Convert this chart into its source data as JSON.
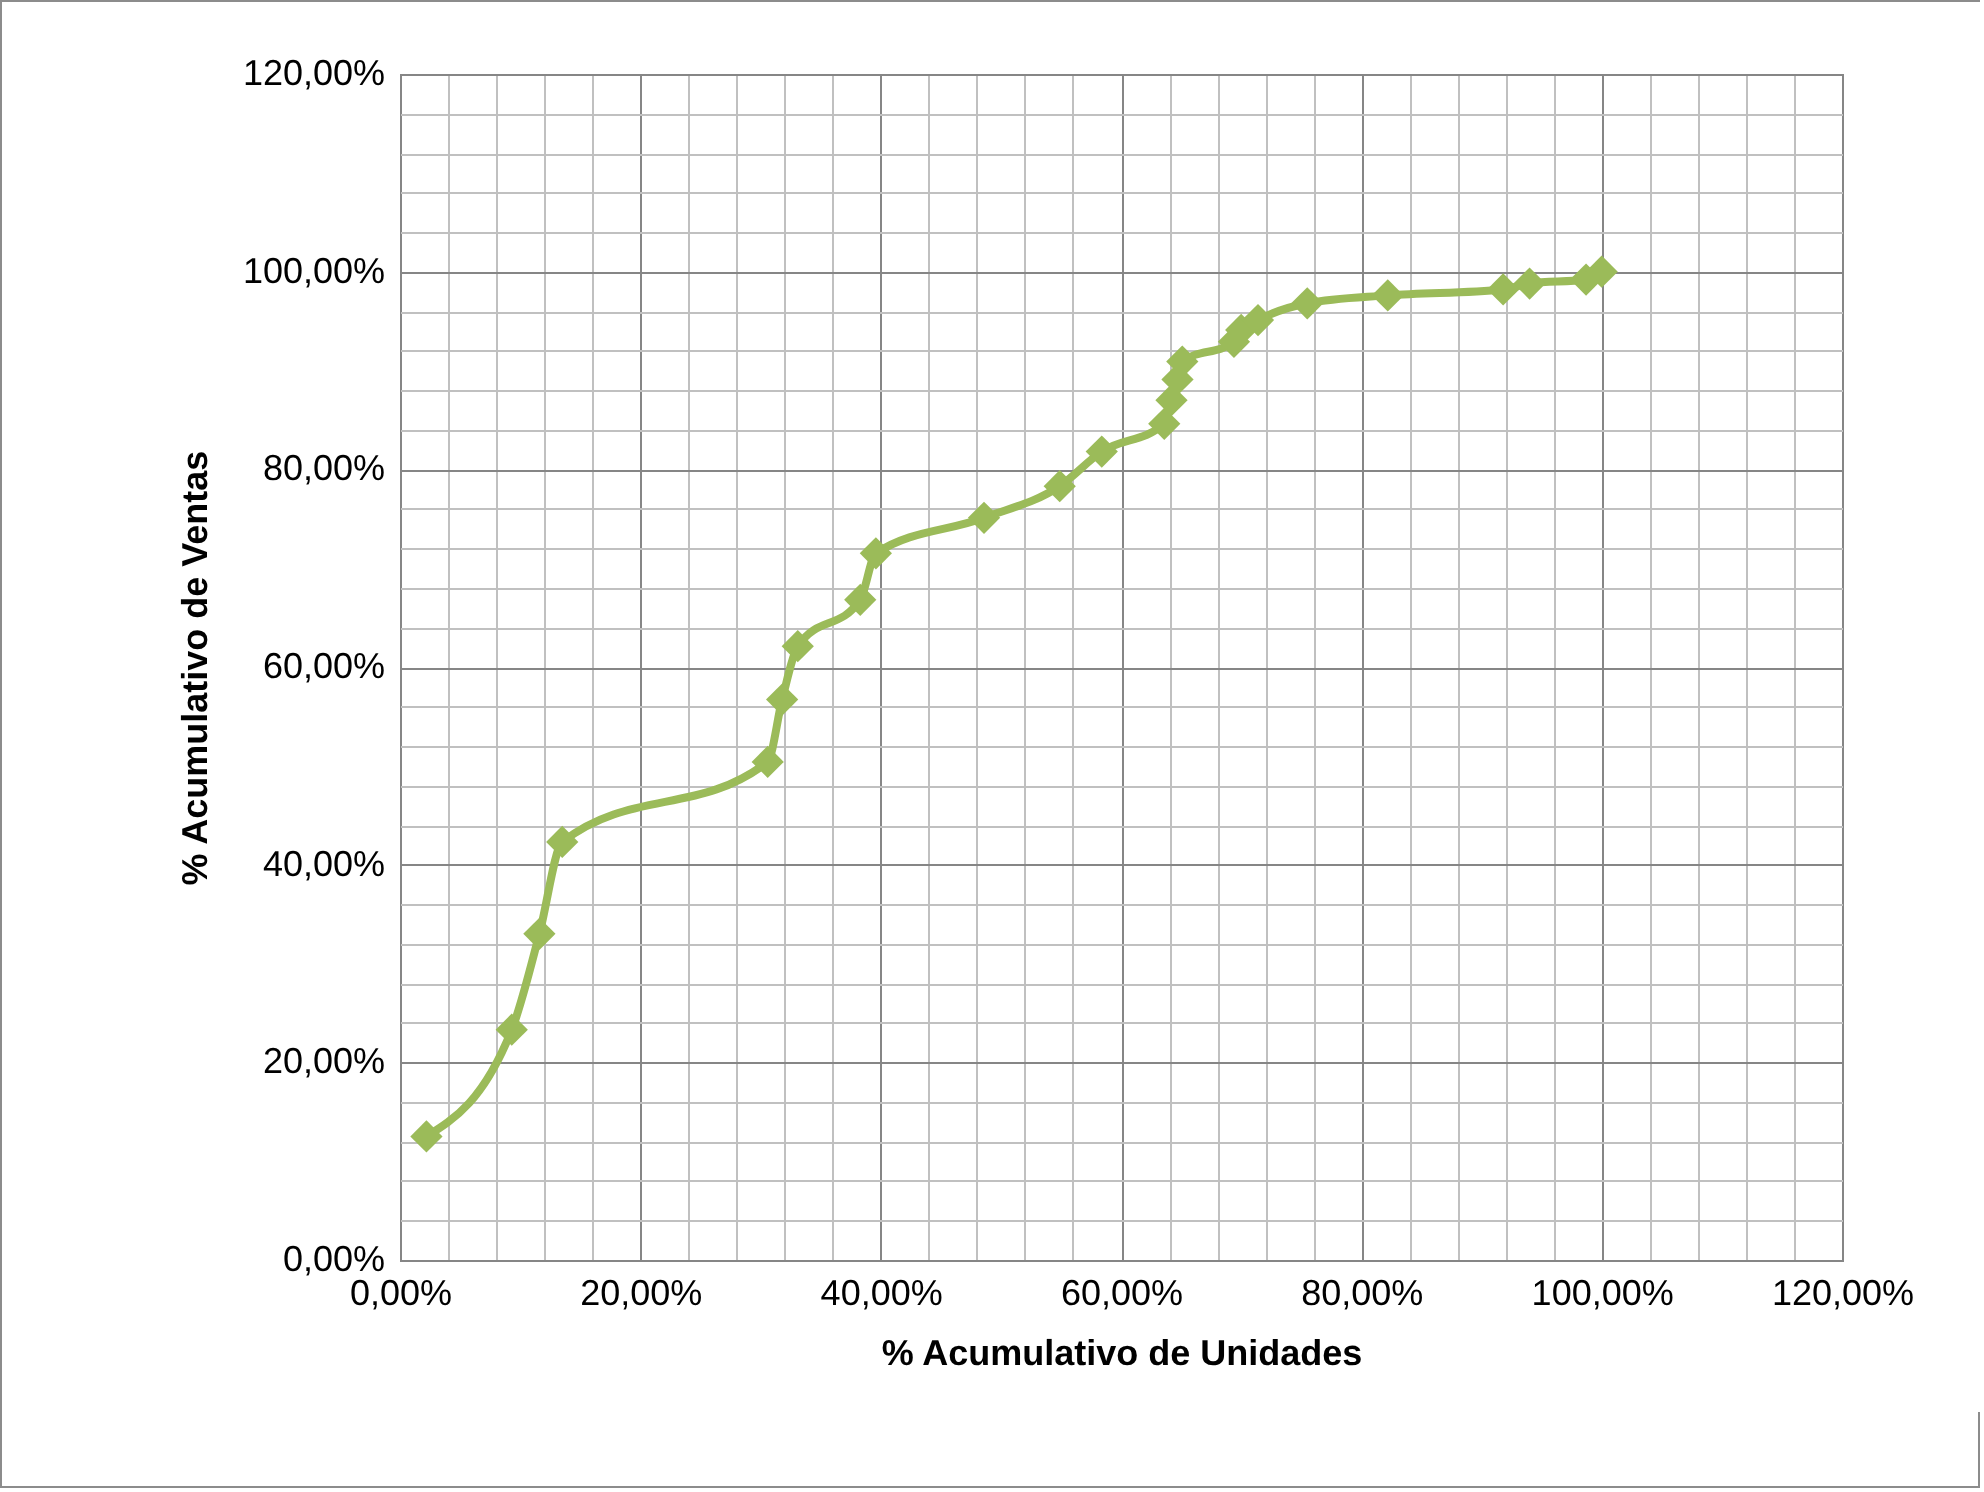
{
  "chart_data": {
    "type": "line",
    "xlabel": "% Acumulativo de Unidades",
    "ylabel": "% Acumulativo de Ventas",
    "x": [
      2.2,
      9.3,
      11.6,
      13.5,
      30.6,
      31.8,
      33.1,
      38.3,
      39.6,
      48.6,
      54.9,
      58.4,
      63.6,
      64.2,
      64.7,
      65.1,
      69.4,
      70.0,
      71.4,
      75.5,
      82.2,
      91.8,
      94.0,
      98.7,
      100
    ],
    "series": [
      {
        "color": "#9bbb59",
        "values": [
          12.5,
          23.3,
          33.0,
          42.3,
          50.4,
          56.7,
          62.1,
          66.8,
          71.5,
          75.1,
          78.3,
          81.8,
          84.6,
          87.0,
          89.1,
          90.9,
          92.9,
          94.1,
          95.1,
          96.8,
          97.6,
          98.2,
          98.8,
          99.2,
          100
        ]
      }
    ],
    "xlim": [
      0,
      120
    ],
    "ylim": [
      0,
      120
    ],
    "xticks": [
      {
        "value": 0,
        "label": "0,00%"
      },
      {
        "value": 20,
        "label": "20,00%"
      },
      {
        "value": 40,
        "label": "40,00%"
      },
      {
        "value": 60,
        "label": "60,00%"
      },
      {
        "value": 80,
        "label": "80,00%"
      },
      {
        "value": 100,
        "label": "100,00%"
      },
      {
        "value": 120,
        "label": "120,00%"
      }
    ],
    "yticks": [
      {
        "value": 0,
        "label": "0,00%"
      },
      {
        "value": 20,
        "label": "20,00%"
      },
      {
        "value": 40,
        "label": "40,00%"
      },
      {
        "value": 60,
        "label": "60,00%"
      },
      {
        "value": 80,
        "label": "80,00%"
      },
      {
        "value": 100,
        "label": "100,00%"
      },
      {
        "value": 120,
        "label": "120,00%"
      }
    ],
    "grid": true,
    "marker": "diamond",
    "line_style": "solid",
    "legend": false
  }
}
